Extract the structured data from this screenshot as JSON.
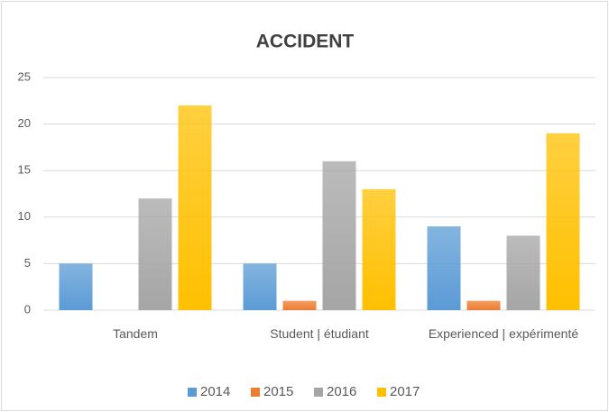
{
  "chart_data": {
    "type": "bar",
    "title": "ACCIDENT",
    "categories": [
      "Tandem",
      "Student | étudiant",
      "Experienced | expérimenté"
    ],
    "series": [
      {
        "name": "2014",
        "color": "#5b9bd5",
        "values": [
          5,
          5,
          9
        ]
      },
      {
        "name": "2015",
        "color": "#ed7d31",
        "values": [
          0,
          1,
          1
        ]
      },
      {
        "name": "2016",
        "color": "#a5a5a5",
        "values": [
          12,
          16,
          8
        ]
      },
      {
        "name": "2017",
        "color": "#ffc000",
        "values": [
          22,
          13,
          19
        ]
      }
    ],
    "ylim": [
      0,
      25
    ],
    "yticks": [
      0,
      5,
      10,
      15,
      20,
      25
    ],
    "grid": true,
    "legend": "bottom"
  }
}
